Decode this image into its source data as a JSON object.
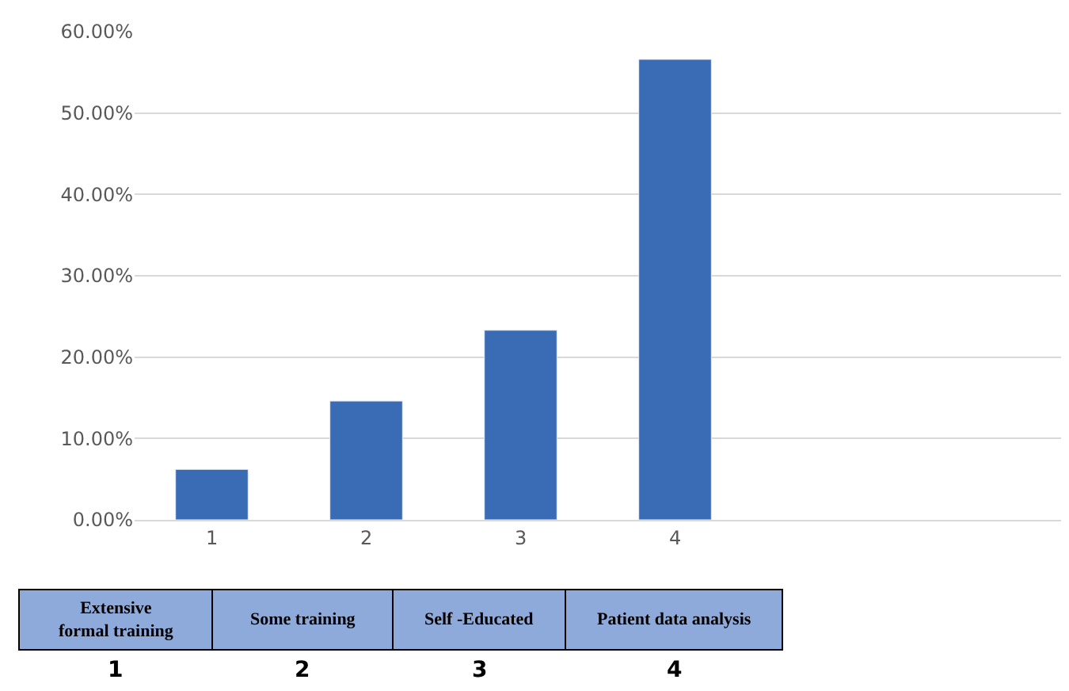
{
  "chart_data": {
    "type": "bar",
    "categories": [
      "1",
      "2",
      "3",
      "4",
      null,
      null
    ],
    "values": [
      6.2,
      14.6,
      23.3,
      56.6,
      null,
      null
    ],
    "color": "#3a6cb5",
    "ylim": [
      0,
      60
    ],
    "yticks": [
      {
        "value": 0,
        "label": "0.00%"
      },
      {
        "value": 10,
        "label": "10.00%"
      },
      {
        "value": 20,
        "label": "20.00%"
      },
      {
        "value": 30,
        "label": "30.00%"
      },
      {
        "value": 40,
        "label": "40.00%"
      },
      {
        "value": 50,
        "label": "50.00%"
      },
      {
        "value": 60,
        "label": "60.00%"
      }
    ],
    "grid": "y",
    "legend": false,
    "annotations": [
      "Extensive\nformal training",
      "Some training",
      "Self -Educated",
      "Patient data analysis"
    ]
  }
}
